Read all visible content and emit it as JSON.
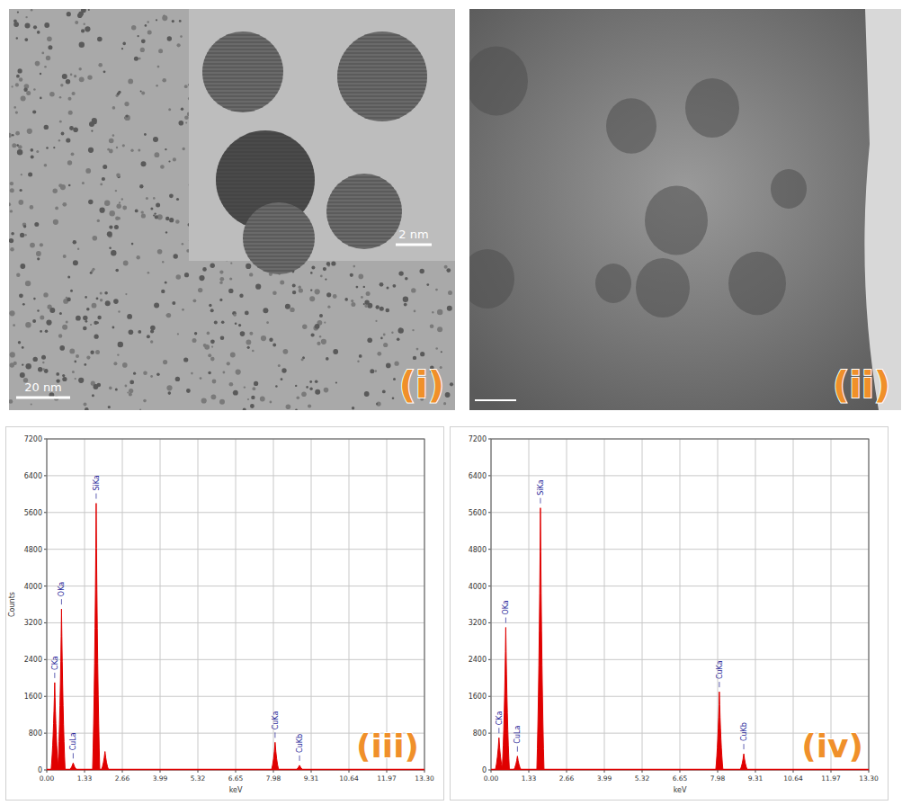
{
  "images": [
    {
      "label": "(i)",
      "scale_bars": [
        "20 nm",
        "2 nm"
      ]
    },
    {
      "label": "(ii)"
    }
  ],
  "chart_data": [
    {
      "type": "bar",
      "title": "(iii)",
      "x_label": "keV",
      "y_label": "Counts",
      "x": [
        0.28,
        0.52,
        0.93,
        1.74,
        2.05,
        8.04,
        8.9
      ],
      "values": [
        1900,
        3500,
        150,
        5800,
        400,
        600,
        100
      ],
      "annotations": [
        "CKa",
        "OKa",
        "CuLa",
        "SiKa",
        null,
        "CuKa",
        "CuKb"
      ],
      "color": "#e00000",
      "xlim": [
        0,
        13.3
      ],
      "xticks": [
        {
          "value": 0,
          "label": "0.00"
        },
        {
          "value": 1.33,
          "label": "1.33"
        },
        {
          "value": 2.66,
          "label": "2.66"
        },
        {
          "value": 3.99,
          "label": "3.99"
        },
        {
          "value": 5.32,
          "label": "5.32"
        },
        {
          "value": 6.65,
          "label": "6.65"
        },
        {
          "value": 7.98,
          "label": "7.98"
        },
        {
          "value": 9.31,
          "label": "9.31"
        },
        {
          "value": 10.64,
          "label": "10.64"
        },
        {
          "value": 11.97,
          "label": "11.97"
        },
        {
          "value": 13.3,
          "label": "13.30"
        }
      ],
      "ylim": [
        0,
        7200
      ],
      "yticks": [
        0,
        800,
        1600,
        2400,
        3200,
        4000,
        4800,
        5600,
        6400,
        7200
      ],
      "grid": true
    },
    {
      "type": "bar",
      "title": "(iv)",
      "x_label": "keV",
      "x": [
        0.28,
        0.52,
        0.93,
        1.74,
        8.04,
        8.9
      ],
      "values": [
        700,
        3100,
        300,
        5700,
        1700,
        350
      ],
      "annotations": [
        "CKa",
        "OKa",
        "CuLa",
        "SiKa",
        "CuKa",
        "CuKb"
      ],
      "color": "#e00000",
      "xlim": [
        0,
        13.3
      ],
      "xticks": [
        {
          "value": 0,
          "label": "0.00"
        },
        {
          "value": 1.33,
          "label": "1.33"
        },
        {
          "value": 2.66,
          "label": "2.66"
        },
        {
          "value": 3.99,
          "label": "3.99"
        },
        {
          "value": 5.32,
          "label": "5.32"
        },
        {
          "value": 6.65,
          "label": "6.65"
        },
        {
          "value": 7.98,
          "label": "7.98"
        },
        {
          "value": 9.31,
          "label": "9.31"
        },
        {
          "value": 10.64,
          "label": "10.64"
        },
        {
          "value": 11.97,
          "label": "11.97"
        },
        {
          "value": 13.3,
          "label": "13.30"
        }
      ],
      "ylim": [
        0,
        7200
      ],
      "yticks": [
        0,
        800,
        1600,
        2400,
        3200,
        4000,
        4800,
        5600,
        6400,
        7200
      ],
      "grid": true
    }
  ]
}
